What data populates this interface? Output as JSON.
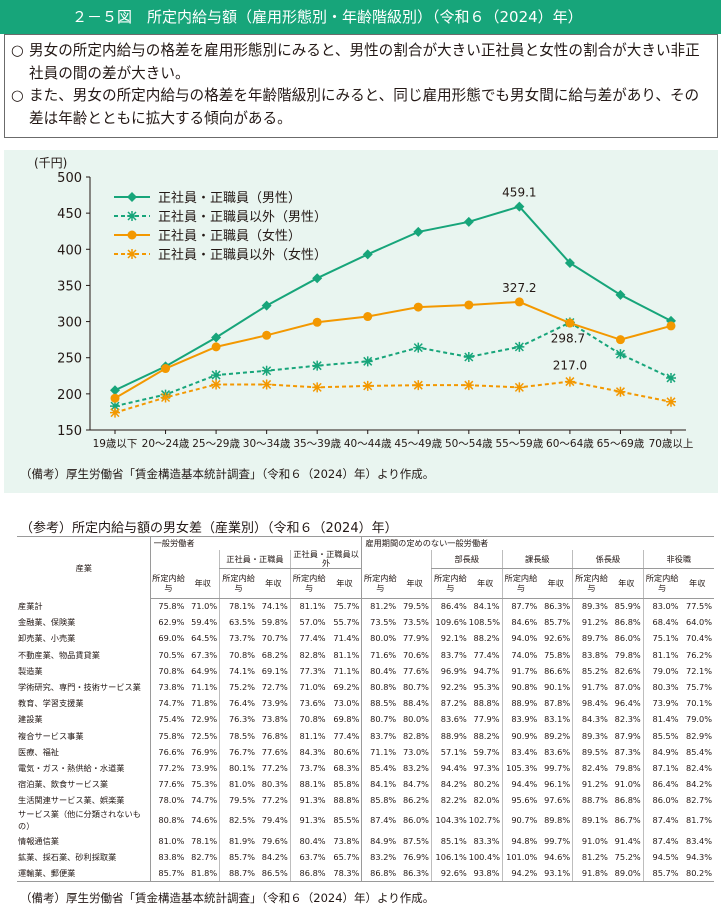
{
  "header": {
    "title": "２－５図　所定内給与額（雇用形態別・年齢階級別）（令和６（2024）年）"
  },
  "summary": {
    "bullets": [
      {
        "mark": "○",
        "text": "男女の所定内給与の格差を雇用形態別にみると、男性の割合が大きい正社員と女性の割合が大きい非正社員の間の差が大きい。"
      },
      {
        "mark": "○",
        "text": "また、男女の所定内給与の格差を年齢階級別にみると、同じ雇用形態でも男女間に給与差があり、その差は年齢とともに拡大する傾向がある。"
      }
    ]
  },
  "chart_data": {
    "type": "line",
    "y_unit": "(千円)",
    "ylim": [
      150,
      500
    ],
    "yticks": [
      150,
      200,
      250,
      300,
      350,
      400,
      450,
      500
    ],
    "categories": [
      "19歳以下",
      "20～24歳",
      "25～29歳",
      "30～34歳",
      "35～39歳",
      "40～44歳",
      "45～49歳",
      "50～54歳",
      "55～59歳",
      "60～64歳",
      "65～69歳",
      "70歳以上"
    ],
    "legend_position": "top-left",
    "series": [
      {
        "name": "正社員・正職員（男性）",
        "color": "#17a57a",
        "marker": "diamond",
        "dashed": false,
        "values": [
          205,
          238,
          278,
          322,
          360,
          393,
          424,
          438,
          459.1,
          381,
          337,
          301
        ]
      },
      {
        "name": "正社員・正職員以外（男性）",
        "color": "#17a57a",
        "marker": "x",
        "dashed": true,
        "values": [
          183,
          199,
          226,
          232,
          239,
          245,
          264,
          251,
          265,
          298.7,
          255,
          222
        ]
      },
      {
        "name": "正社員・正職員（女性）",
        "color": "#f39800",
        "marker": "circle",
        "dashed": false,
        "values": [
          194,
          235,
          265,
          281,
          299,
          307,
          320,
          323,
          327.2,
          298,
          275,
          294
        ]
      },
      {
        "name": "正社員・正職員以外（女性）",
        "color": "#f39800",
        "marker": "x",
        "dashed": true,
        "values": [
          174,
          195,
          213,
          213,
          209,
          211,
          212,
          212,
          209,
          217.0,
          203,
          189
        ]
      }
    ],
    "annotations": [
      {
        "series": 0,
        "index": 8,
        "label": "459.1"
      },
      {
        "series": 2,
        "index": 8,
        "label": "327.2"
      },
      {
        "series": 1,
        "index": 9,
        "label": "298.7"
      },
      {
        "series": 3,
        "index": 9,
        "label": "217.0"
      }
    ]
  },
  "note1": "（備考）厚生労働省「賃金構造基本統計調査」（令和６（2024）年）より作成。",
  "reference": {
    "title": "（参考）所定内給与額の男女差（産業別）（令和６（2024）年）",
    "group1": "一般労働者",
    "group2": "雇用期間の定めのない一般労働者",
    "industry_header": "産業",
    "sub_regular": "正社員・正職員",
    "sub_nonregular": "正社員・正職員以外",
    "sub_bucho": "部長級",
    "sub_kacho": "課長級",
    "sub_kakaricho": "係長級",
    "sub_hiyakushoku": "非役職",
    "col_pay": "所定内給与",
    "col_annual": "年収",
    "rows": [
      {
        "name": "産業計",
        "v": [
          "75.8%",
          "71.0%",
          "78.1%",
          "74.1%",
          "81.1%",
          "75.7%",
          "81.2%",
          "79.5%",
          "86.4%",
          "84.1%",
          "87.7%",
          "86.3%",
          "89.3%",
          "85.9%",
          "83.0%",
          "77.5%"
        ]
      },
      {
        "name": "金融業、保険業",
        "v": [
          "62.9%",
          "59.4%",
          "63.5%",
          "59.8%",
          "57.0%",
          "55.7%",
          "73.5%",
          "73.5%",
          "109.6%",
          "108.5%",
          "84.6%",
          "85.7%",
          "91.2%",
          "86.8%",
          "68.4%",
          "64.0%"
        ]
      },
      {
        "name": "卸売業、小売業",
        "v": [
          "69.0%",
          "64.5%",
          "73.7%",
          "70.7%",
          "77.4%",
          "71.4%",
          "80.0%",
          "77.9%",
          "92.1%",
          "88.2%",
          "94.0%",
          "92.6%",
          "89.7%",
          "86.0%",
          "75.1%",
          "70.4%"
        ]
      },
      {
        "name": "不動産業、物品賃貸業",
        "v": [
          "70.5%",
          "67.3%",
          "70.8%",
          "68.2%",
          "82.8%",
          "81.1%",
          "71.6%",
          "70.6%",
          "83.7%",
          "77.4%",
          "74.0%",
          "75.8%",
          "83.8%",
          "79.8%",
          "81.1%",
          "76.2%"
        ]
      },
      {
        "name": "製造業",
        "v": [
          "70.8%",
          "64.9%",
          "74.1%",
          "69.1%",
          "77.3%",
          "71.1%",
          "80.4%",
          "77.6%",
          "96.9%",
          "94.7%",
          "91.7%",
          "86.6%",
          "85.2%",
          "82.6%",
          "79.0%",
          "72.1%"
        ]
      },
      {
        "name": "学術研究、専門・技術サービス業",
        "v": [
          "73.8%",
          "71.1%",
          "75.2%",
          "72.7%",
          "71.0%",
          "69.2%",
          "80.8%",
          "80.7%",
          "92.2%",
          "95.3%",
          "90.8%",
          "90.1%",
          "91.7%",
          "87.0%",
          "80.3%",
          "75.7%"
        ]
      },
      {
        "name": "教育、学習支援業",
        "v": [
          "74.7%",
          "71.8%",
          "76.4%",
          "73.9%",
          "73.6%",
          "73.0%",
          "88.5%",
          "88.4%",
          "87.2%",
          "88.8%",
          "88.9%",
          "87.8%",
          "98.4%",
          "96.4%",
          "73.9%",
          "70.1%"
        ]
      },
      {
        "name": "建設業",
        "v": [
          "75.4%",
          "72.9%",
          "76.3%",
          "73.8%",
          "70.8%",
          "69.8%",
          "80.7%",
          "80.0%",
          "83.6%",
          "77.9%",
          "83.9%",
          "83.1%",
          "84.3%",
          "82.3%",
          "81.4%",
          "79.0%"
        ]
      },
      {
        "name": "複合サービス事業",
        "v": [
          "75.8%",
          "72.5%",
          "78.5%",
          "76.8%",
          "81.1%",
          "77.4%",
          "83.7%",
          "82.8%",
          "88.9%",
          "88.2%",
          "90.9%",
          "89.2%",
          "89.3%",
          "87.9%",
          "85.5%",
          "82.9%"
        ]
      },
      {
        "name": "医療、福祉",
        "v": [
          "76.6%",
          "76.9%",
          "76.7%",
          "77.6%",
          "84.3%",
          "80.6%",
          "71.1%",
          "73.0%",
          "57.1%",
          "59.7%",
          "83.4%",
          "83.6%",
          "89.5%",
          "87.3%",
          "84.9%",
          "85.4%"
        ]
      },
      {
        "name": "電気・ガス・熱供給・水道業",
        "v": [
          "77.2%",
          "73.9%",
          "80.1%",
          "77.2%",
          "73.7%",
          "68.3%",
          "85.4%",
          "83.2%",
          "94.4%",
          "97.3%",
          "105.3%",
          "99.7%",
          "82.4%",
          "79.8%",
          "87.1%",
          "82.4%"
        ]
      },
      {
        "name": "宿泊業、飲食サービス業",
        "v": [
          "77.6%",
          "75.3%",
          "81.0%",
          "80.3%",
          "88.1%",
          "85.8%",
          "84.1%",
          "84.7%",
          "84.2%",
          "80.2%",
          "94.4%",
          "96.1%",
          "91.2%",
          "91.0%",
          "86.4%",
          "84.2%"
        ]
      },
      {
        "name": "生活関連サービス業、娯楽業",
        "v": [
          "78.0%",
          "74.7%",
          "79.5%",
          "77.2%",
          "91.3%",
          "88.8%",
          "85.8%",
          "86.2%",
          "82.2%",
          "82.0%",
          "95.6%",
          "97.6%",
          "88.7%",
          "86.8%",
          "86.0%",
          "82.7%"
        ]
      },
      {
        "name": "サービス業（他に分類されないもの）",
        "v": [
          "80.8%",
          "74.6%",
          "82.5%",
          "79.4%",
          "91.3%",
          "85.5%",
          "87.4%",
          "86.0%",
          "104.3%",
          "102.7%",
          "90.7%",
          "89.8%",
          "89.1%",
          "86.7%",
          "87.4%",
          "81.7%"
        ]
      },
      {
        "name": "情報通信業",
        "v": [
          "81.0%",
          "78.1%",
          "81.9%",
          "79.6%",
          "80.4%",
          "73.8%",
          "84.9%",
          "87.5%",
          "85.1%",
          "83.3%",
          "94.8%",
          "99.7%",
          "91.0%",
          "91.4%",
          "87.4%",
          "83.4%"
        ]
      },
      {
        "name": "鉱業、採石業、砂利採取業",
        "v": [
          "83.8%",
          "82.7%",
          "85.7%",
          "84.2%",
          "63.7%",
          "65.7%",
          "83.2%",
          "76.9%",
          "106.1%",
          "100.4%",
          "101.0%",
          "94.6%",
          "81.2%",
          "75.2%",
          "94.5%",
          "94.3%"
        ]
      },
      {
        "name": "運輸業、郵便業",
        "v": [
          "85.7%",
          "81.8%",
          "88.7%",
          "86.5%",
          "86.8%",
          "78.3%",
          "86.8%",
          "86.3%",
          "92.6%",
          "93.8%",
          "94.2%",
          "93.1%",
          "91.8%",
          "89.0%",
          "85.7%",
          "80.2%"
        ]
      }
    ]
  },
  "note2": "（備考）厚生労働省「賃金構造基本統計調査」（令和６（2024）年）より作成。"
}
